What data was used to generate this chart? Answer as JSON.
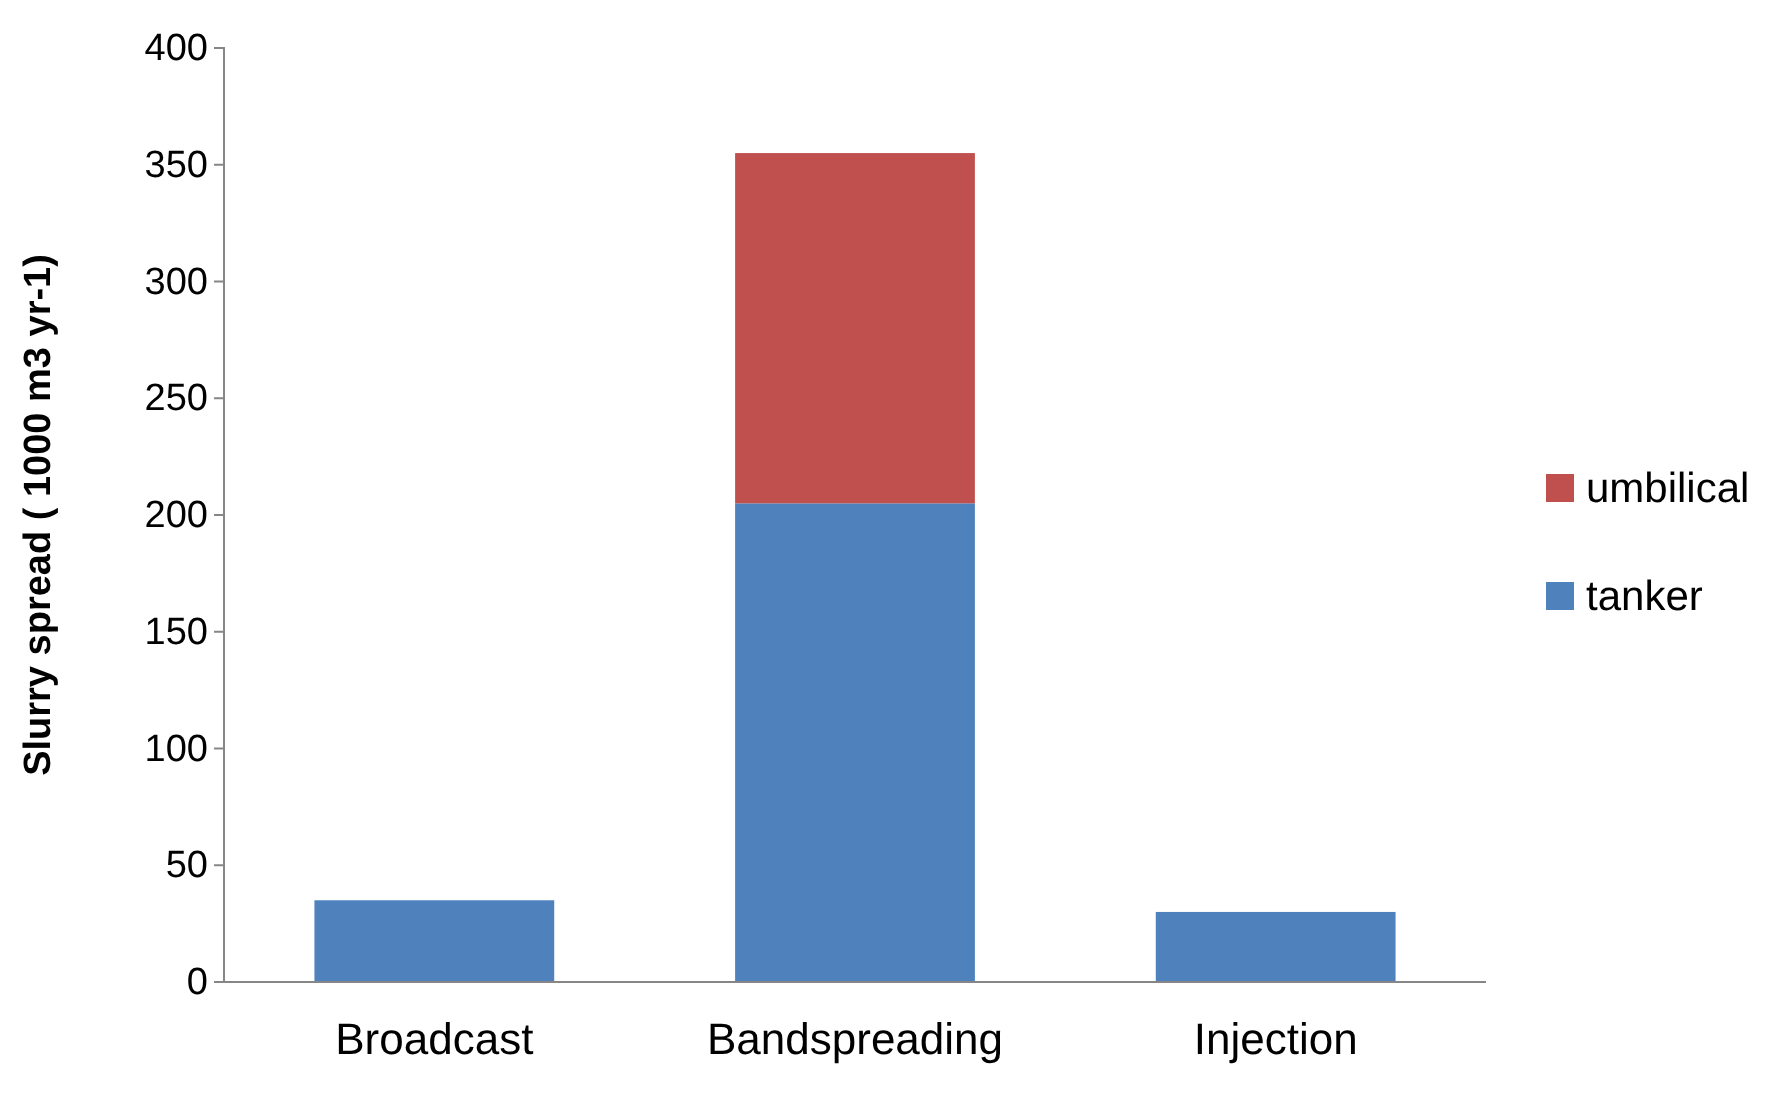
{
  "chart_data": {
    "type": "bar",
    "stacked": true,
    "ylabel": "Slurry spread ( 1000 m3 yr-1)",
    "categories": [
      "Broadcast",
      "Bandspreading",
      "Injection"
    ],
    "series": [
      {
        "name": "tanker",
        "color": "#4f81bd",
        "values": [
          35,
          205,
          30
        ]
      },
      {
        "name": "umbilical",
        "color": "#c0504d",
        "values": [
          0,
          150,
          0
        ]
      }
    ],
    "ylim": [
      0,
      400
    ],
    "yticks": [
      0,
      50,
      100,
      150,
      200,
      250,
      300,
      350,
      400
    ],
    "grid": false,
    "legend": "right"
  }
}
